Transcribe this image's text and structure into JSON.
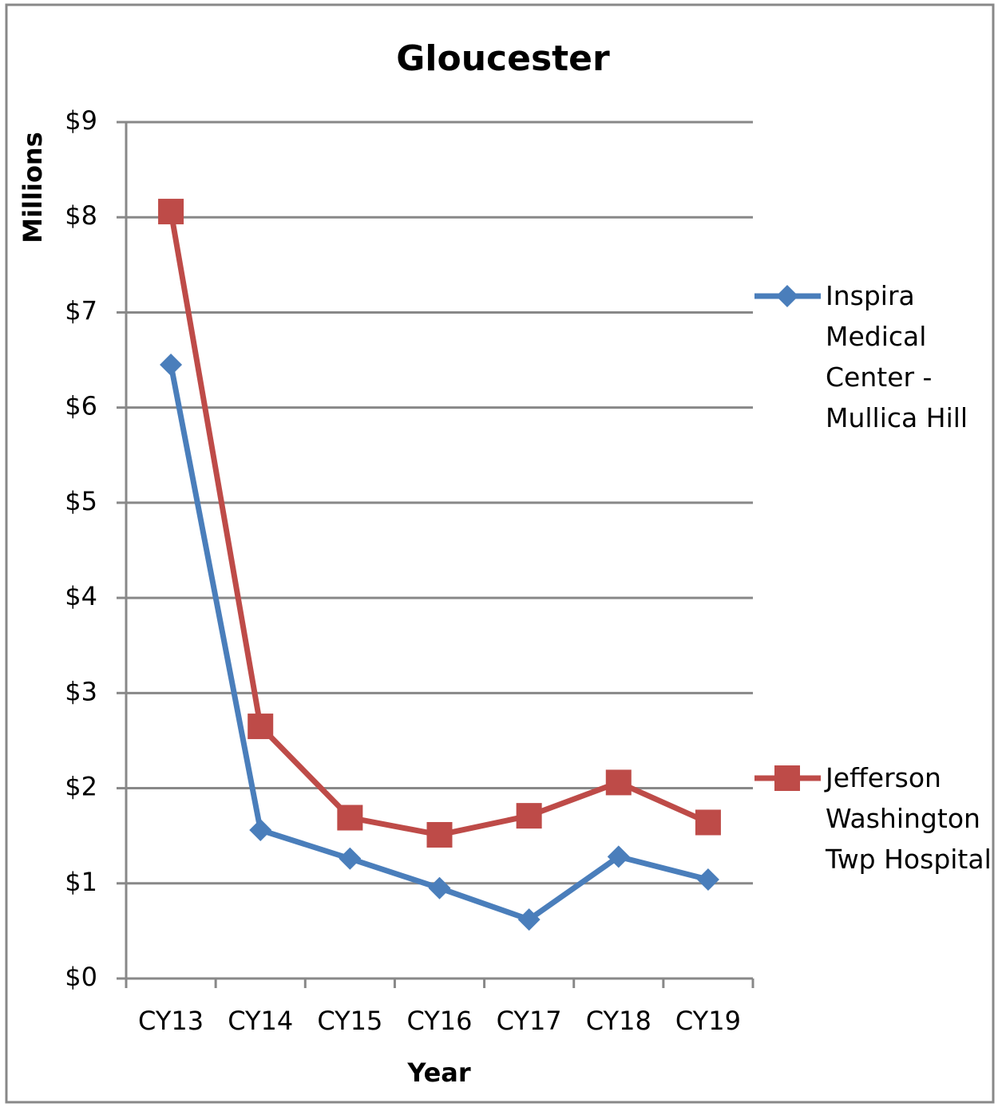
{
  "chart_data": {
    "type": "line",
    "title": "Gloucester",
    "x_label": "Year",
    "y_label": "Millions",
    "categories": [
      "CY13",
      "CY14",
      "CY15",
      "CY16",
      "CY17",
      "CY18",
      "CY19"
    ],
    "series": [
      {
        "name": "Inspira Medical Center - Mullica Hill",
        "color": "#4a7ebb",
        "marker": "diamond",
        "values": [
          6.45,
          1.56,
          1.26,
          0.95,
          0.62,
          1.28,
          1.04
        ]
      },
      {
        "name": "Jefferson Washington Twp Hospital",
        "color": "#be4b48",
        "marker": "square",
        "values": [
          8.06,
          2.65,
          1.69,
          1.51,
          1.71,
          2.06,
          1.64
        ]
      }
    ],
    "ylim": [
      0,
      9
    ],
    "yticks": [
      {
        "value": 0,
        "label": "$0"
      },
      {
        "value": 1,
        "label": "$1"
      },
      {
        "value": 2,
        "label": "$2"
      },
      {
        "value": 3,
        "label": "$3"
      },
      {
        "value": 4,
        "label": "$4"
      },
      {
        "value": 5,
        "label": "$5"
      },
      {
        "value": 6,
        "label": "$6"
      },
      {
        "value": 7,
        "label": "$7"
      },
      {
        "value": 8,
        "label": "$8"
      },
      {
        "value": 9,
        "label": "$9"
      }
    ],
    "grid": true,
    "legend": "right"
  }
}
